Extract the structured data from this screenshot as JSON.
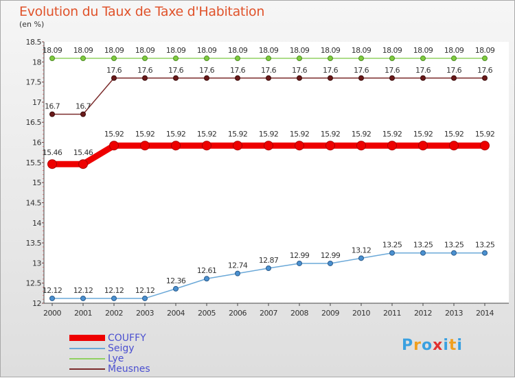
{
  "title": "Evolution du Taux de Taxe d'Habitation",
  "subtitle": "(en %)",
  "logo": {
    "letters": [
      "P",
      "r",
      "o",
      "x",
      "i",
      "t",
      "i"
    ],
    "colors": [
      "#3aa0e0",
      "#f0a020",
      "#3aa0e0",
      "#e03030",
      "#3aa0e0",
      "#f0a020",
      "#3aa0e0"
    ]
  },
  "chart_data": {
    "type": "line",
    "x": [
      "2000",
      "2001",
      "2002",
      "2003",
      "2004",
      "2005",
      "2006",
      "2007",
      "2008",
      "2009",
      "2010",
      "2011",
      "2012",
      "2013",
      "2014"
    ],
    "ylim": [
      12,
      18.5
    ],
    "yticks": [
      "12",
      "12.5",
      "13",
      "13.5",
      "14",
      "14.5",
      "15",
      "15.5",
      "16",
      "16.5",
      "17",
      "17.5",
      "18",
      "18.5"
    ],
    "grid": false,
    "legend_position": "bottom-left",
    "series": [
      {
        "name": "COUFFY",
        "color": "#ee0000",
        "width": 9,
        "marker_r": 6.5,
        "marker_fill": "#ee0000",
        "marker_stroke": "#aa0000",
        "values": [
          15.46,
          15.46,
          15.92,
          15.92,
          15.92,
          15.92,
          15.92,
          15.92,
          15.92,
          15.92,
          15.92,
          15.92,
          15.92,
          15.92,
          15.92
        ],
        "labels": [
          "15.46",
          "15.46",
          "15.92",
          "15.92",
          "15.92",
          "15.92",
          "15.92",
          "15.92",
          "15.92",
          "15.92",
          "15.92",
          "15.92",
          "15.92",
          "15.92",
          "15.92"
        ]
      },
      {
        "name": "Seigy",
        "color": "#6aa8d8",
        "width": 1.5,
        "marker_r": 3.5,
        "marker_fill": "#4a90d0",
        "marker_stroke": "#2a5a8a",
        "values": [
          12.12,
          12.12,
          12.12,
          12.12,
          12.36,
          12.61,
          12.74,
          12.87,
          12.99,
          12.99,
          13.12,
          13.25,
          13.25,
          13.25,
          13.25
        ],
        "labels": [
          "12.12",
          "12.12",
          "12.12",
          "12.12",
          "12.36",
          "12.61",
          "12.74",
          "12.87",
          "12.99",
          "12.99",
          "13.12",
          "13.25",
          "13.25",
          "13.25",
          "13.25"
        ]
      },
      {
        "name": "Lye",
        "color": "#90d060",
        "width": 1.5,
        "marker_r": 3.5,
        "marker_fill": "#80cc40",
        "marker_stroke": "#4a8a20",
        "values": [
          18.09,
          18.09,
          18.09,
          18.09,
          18.09,
          18.09,
          18.09,
          18.09,
          18.09,
          18.09,
          18.09,
          18.09,
          18.09,
          18.09,
          18.09
        ],
        "labels": [
          "18.09",
          "18.09",
          "18.09",
          "18.09",
          "18.09",
          "18.09",
          "18.09",
          "18.09",
          "18.09",
          "18.09",
          "18.09",
          "18.09",
          "18.09",
          "18.09",
          "18.09"
        ]
      },
      {
        "name": "Meusnes",
        "color": "#7a2a2a",
        "width": 1.5,
        "marker_r": 3.5,
        "marker_fill": "#6a1a1a",
        "marker_stroke": "#3a0a0a",
        "values": [
          16.7,
          16.7,
          17.6,
          17.6,
          17.6,
          17.6,
          17.6,
          17.6,
          17.6,
          17.6,
          17.6,
          17.6,
          17.6,
          17.6,
          17.6
        ],
        "labels": [
          "16.7",
          "16.7",
          "17.6",
          "17.6",
          "17.6",
          "17.6",
          "17.6",
          "17.6",
          "17.6",
          "17.6",
          "17.6",
          "17.6",
          "17.6",
          "17.6",
          "17.6"
        ]
      }
    ]
  }
}
